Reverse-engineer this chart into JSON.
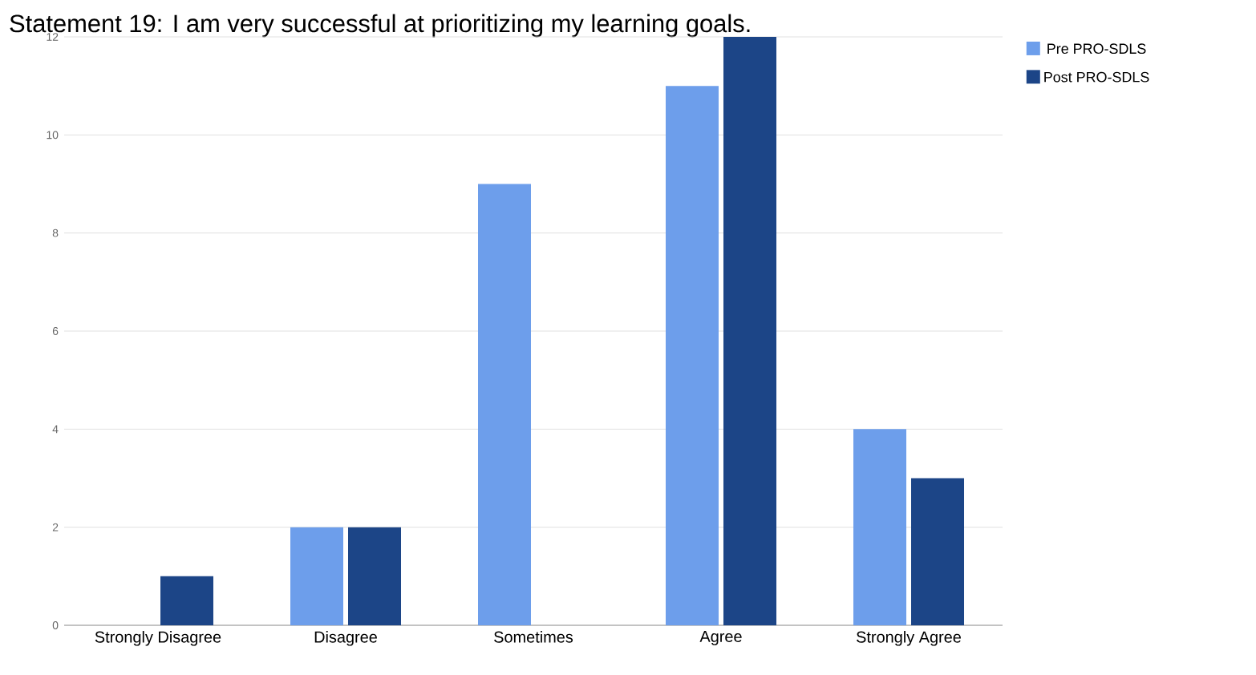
{
  "chart_data": {
    "type": "bar",
    "title": "Statement 19: I am very successful at prioritizing my learning goals.",
    "categories": [
      "Strongly Disagree",
      "Disagree",
      "Sometimes",
      "Agree",
      "Strongly Agree"
    ],
    "series": [
      {
        "name": "Pre PRO-SDLS",
        "color": "#6d9eeb",
        "values": [
          0,
          2,
          9,
          11,
          4
        ]
      },
      {
        "name": "Post PRO-SDLS",
        "color": "#1c4587",
        "values": [
          1,
          2,
          0,
          12,
          3
        ]
      }
    ],
    "ylim": [
      0,
      12
    ],
    "yticks": [
      0,
      2,
      4,
      6,
      8,
      10,
      12
    ],
    "grid": "y",
    "legend": "top right"
  }
}
